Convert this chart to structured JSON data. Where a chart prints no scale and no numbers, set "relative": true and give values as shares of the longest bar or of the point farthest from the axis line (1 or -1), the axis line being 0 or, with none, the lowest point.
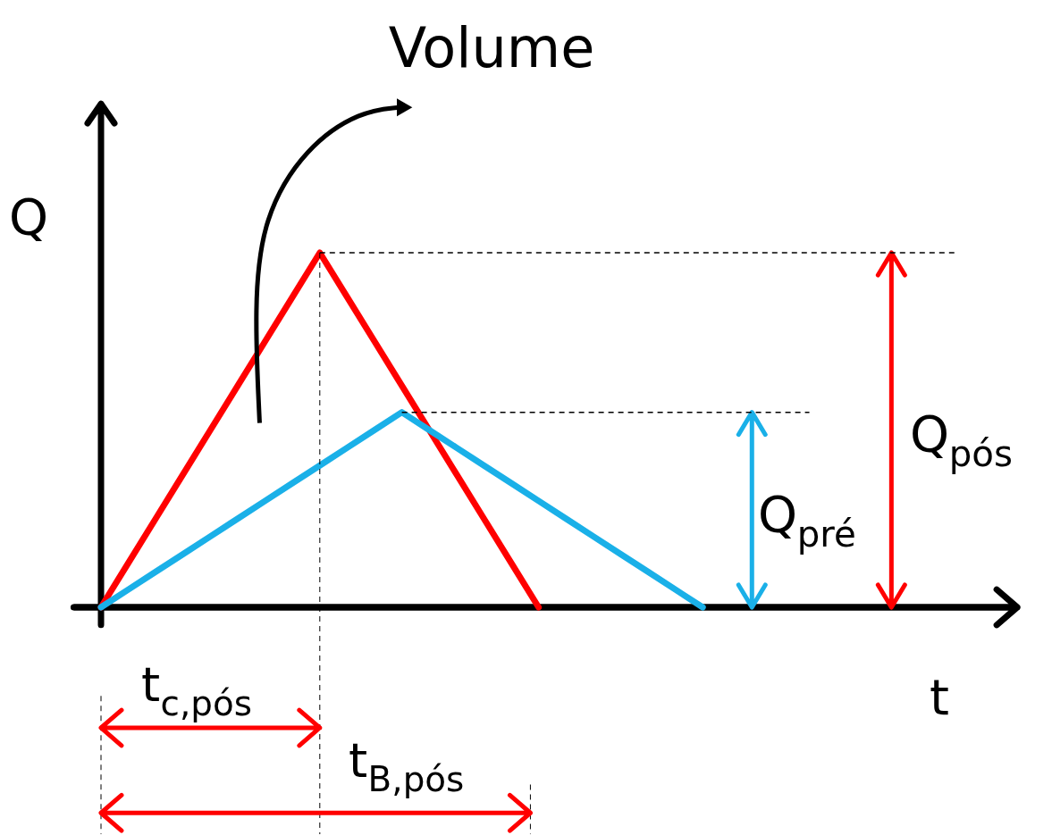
{
  "chart_data": {
    "type": "line",
    "relative": true,
    "xlabel": "t",
    "ylabel": "Q",
    "line_style": "solid",
    "categories": [
      null,
      null,
      null,
      null,
      null,
      null,
      null,
      null,
      null,
      null,
      null,
      null,
      null,
      null,
      null,
      null,
      null,
      null,
      null,
      null,
      null,
      null,
      null
    ],
    "series": [
      {
        "color": "#ff0000",
        "values": [
          0,
          0.125,
          0.25,
          0.375,
          0.5,
          0.625,
          0.75,
          0.875,
          1,
          0.875,
          0.75,
          0.625,
          0.5,
          0.375,
          0.25,
          0.125,
          0,
          null,
          null,
          null,
          null,
          null,
          null
        ]
      },
      {
        "color": "#1ab0e8",
        "values": [
          0,
          0.05,
          0.1,
          0.15,
          0.2,
          0.25,
          0.3,
          0.35,
          0.4,
          0.45,
          0.5,
          0.55,
          0.5,
          0.45,
          0.4,
          0.35,
          0.3,
          0.25,
          0.2,
          0.15,
          0.1,
          0.05,
          0
        ]
      }
    ],
    "ref_lines": [
      {
        "axis": "y",
        "value": 1,
        "color": "#000000",
        "line_style": "dashed"
      },
      {
        "axis": "y",
        "value": 0.55,
        "color": "#000000",
        "line_style": "dashed"
      }
    ],
    "annotations": [
      "Volume",
      "Q$_{pós}$",
      "Q$_{pré}$",
      "t$_{c,pós}$",
      "t$_{B,pós}$"
    ]
  }
}
